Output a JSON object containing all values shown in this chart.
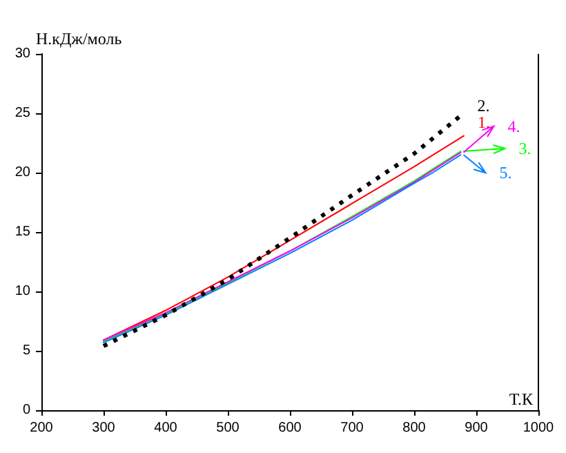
{
  "chart_data": {
    "type": "line",
    "xlabel": "Т.К",
    "ylabel": "Н.кДж/моль",
    "xlim": [
      200,
      1000
    ],
    "xticks": [
      200,
      300,
      400,
      500,
      600,
      700,
      800,
      900,
      1000
    ],
    "ylim": [
      0,
      30
    ],
    "yticks": [
      0,
      5,
      10,
      15,
      20,
      25,
      30
    ],
    "grid": false,
    "legend": "right",
    "marker": "none",
    "series": [
      {
        "name": "1.",
        "color": "#ff0000",
        "line_style": "solid",
        "x": [
          300,
          400,
          500,
          600,
          700,
          800,
          880
        ],
        "values": [
          5.9,
          8.4,
          11.2,
          14.3,
          17.4,
          20.5,
          23.1
        ]
      },
      {
        "name": "2.",
        "color": "#000000",
        "line_style": "dotted",
        "x": [
          300,
          400,
          500,
          600,
          700,
          800,
          875
        ],
        "values": [
          5.4,
          8.0,
          11.0,
          14.5,
          18.1,
          21.6,
          24.8
        ]
      },
      {
        "name": "3.",
        "color": "#00ff00",
        "line_style": "solid",
        "x": [
          300,
          400,
          500,
          600,
          700,
          800,
          830,
          875
        ],
        "values": [
          5.8,
          8.1,
          10.7,
          13.4,
          16.3,
          19.3,
          20.3,
          21.8
        ]
      },
      {
        "name": "4.",
        "color": "#ff00ff",
        "line_style": "solid",
        "x": [
          300,
          400,
          500,
          600,
          700,
          800,
          830,
          875
        ],
        "values": [
          5.9,
          8.2,
          10.8,
          13.4,
          16.2,
          19.2,
          20.2,
          21.7
        ]
      },
      {
        "name": "5.",
        "color": "#0080ff",
        "line_style": "solid",
        "x": [
          300,
          400,
          500,
          600,
          700,
          800,
          830,
          875
        ],
        "values": [
          5.7,
          8.0,
          10.6,
          13.2,
          16.0,
          19.1,
          20.0,
          21.5
        ]
      }
    ]
  }
}
